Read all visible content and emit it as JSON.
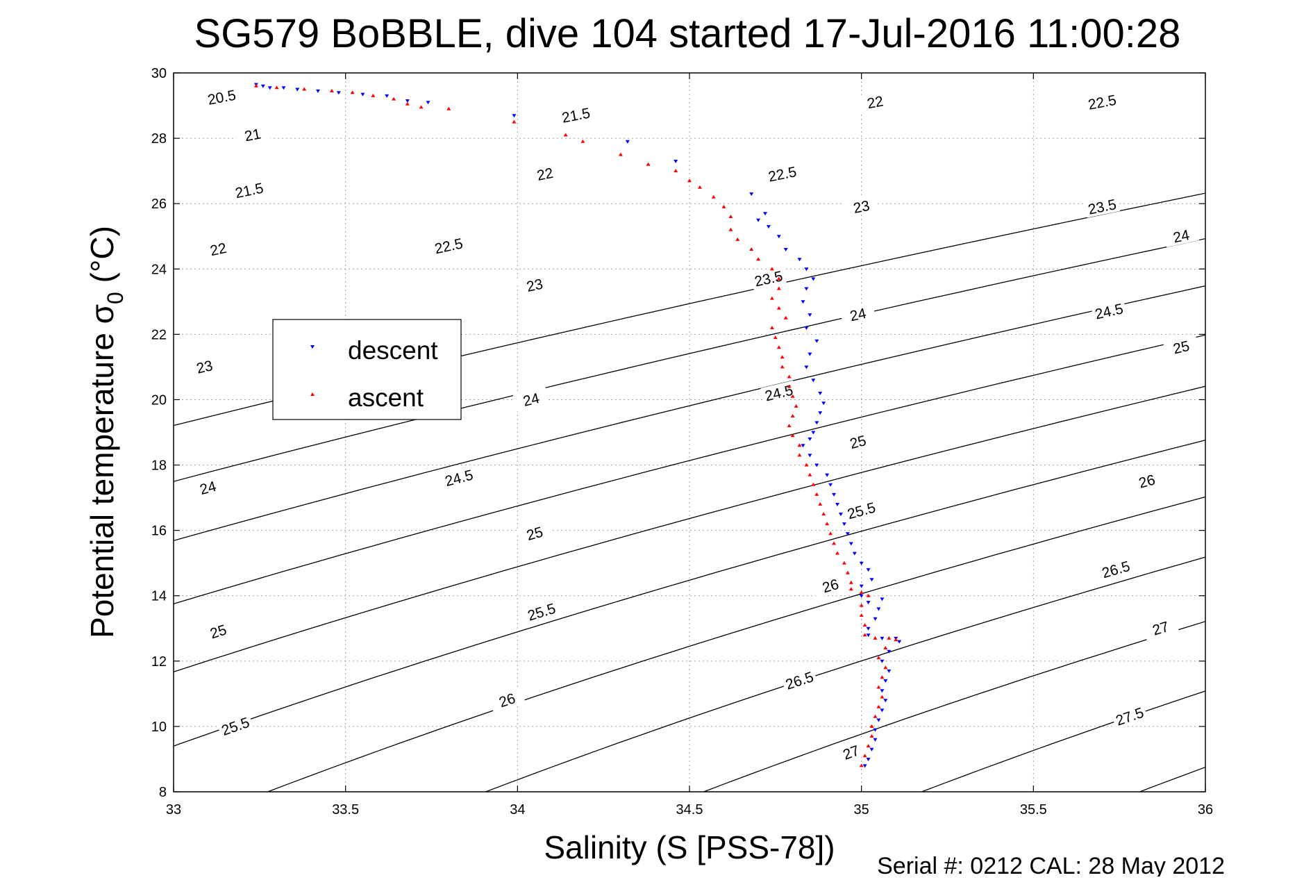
{
  "chart_data": {
    "type": "scatter",
    "title": "SG579 BoBBLE, dive 104 started 17-Jul-2016 11:00:28",
    "xlabel": "Salinity (S [PSS-78])",
    "ylabel": "Potential temperature",
    "ylabel_symbol": "σ",
    "ylabel_subscript": "0",
    "ylabel_unit": "(°C)",
    "footer": "Serial #: 0212  CAL: 28 May 2012",
    "xlim": [
      33,
      36
    ],
    "ylim": [
      8,
      30
    ],
    "xticks": [
      33,
      33.5,
      34,
      34.5,
      35,
      35.5,
      36
    ],
    "xtick_labels": [
      "33",
      "33.5",
      "34",
      "34.5",
      "35",
      "35.5",
      "36"
    ],
    "yticks": [
      8,
      10,
      12,
      14,
      16,
      18,
      20,
      22,
      24,
      26,
      28,
      30
    ],
    "ytick_labels": [
      "8",
      "10",
      "12",
      "14",
      "16",
      "18",
      "20",
      "22",
      "24",
      "26",
      "28",
      "30"
    ],
    "grid": true,
    "legend_position": "left",
    "colors": {
      "descent": "#0000ff",
      "ascent": "#ff0000",
      "contour": "#000000",
      "grid": "#a0a0a0"
    },
    "density_contours": [
      {
        "level": 20.5,
        "label": "20.5"
      },
      {
        "level": 21,
        "label": "21"
      },
      {
        "level": 21.5,
        "label": "21.5"
      },
      {
        "level": 22,
        "label": "22"
      },
      {
        "level": 22.5,
        "label": "22.5"
      },
      {
        "level": 23,
        "label": "23"
      },
      {
        "level": 23.5,
        "label": "23.5"
      },
      {
        "level": 24,
        "label": "24"
      },
      {
        "level": 24.5,
        "label": "24.5"
      },
      {
        "level": 25,
        "label": "25"
      },
      {
        "level": 25.5,
        "label": "25.5"
      },
      {
        "level": 26,
        "label": "26"
      },
      {
        "level": 26.5,
        "label": "26.5"
      },
      {
        "level": 27,
        "label": "27"
      },
      {
        "level": 27.5,
        "label": "27.5"
      }
    ],
    "contour_label_positions": [
      {
        "label": "20.5",
        "x": 33.14,
        "y": 29.25
      },
      {
        "label": "21",
        "x": 33.23,
        "y": 28.1
      },
      {
        "label": "21.5",
        "x": 33.22,
        "y": 26.4
      },
      {
        "label": "21.5",
        "x": 34.17,
        "y": 28.7
      },
      {
        "label": "22",
        "x": 33.13,
        "y": 24.6
      },
      {
        "label": "22",
        "x": 34.08,
        "y": 26.9
      },
      {
        "label": "22",
        "x": 35.04,
        "y": 29.1
      },
      {
        "label": "22.5",
        "x": 33.8,
        "y": 24.7
      },
      {
        "label": "22.5",
        "x": 34.77,
        "y": 26.9
      },
      {
        "label": "22.5",
        "x": 35.7,
        "y": 29.1
      },
      {
        "label": "23",
        "x": 33.09,
        "y": 21.0
      },
      {
        "label": "23",
        "x": 34.05,
        "y": 23.5
      },
      {
        "label": "23",
        "x": 35.0,
        "y": 25.9
      },
      {
        "label": "23.5",
        "x": 34.73,
        "y": 23.7
      },
      {
        "label": "23.5",
        "x": 35.7,
        "y": 25.9
      },
      {
        "label": "24",
        "x": 33.1,
        "y": 17.3
      },
      {
        "label": "24",
        "x": 34.04,
        "y": 20.0
      },
      {
        "label": "24",
        "x": 34.99,
        "y": 22.6
      },
      {
        "label": "24",
        "x": 35.93,
        "y": 25.0
      },
      {
        "label": "24.5",
        "x": 33.83,
        "y": 17.6
      },
      {
        "label": "24.5",
        "x": 34.76,
        "y": 20.2
      },
      {
        "label": "24.5",
        "x": 35.72,
        "y": 22.7
      },
      {
        "label": "25",
        "x": 33.13,
        "y": 12.9
      },
      {
        "label": "25",
        "x": 34.05,
        "y": 15.9
      },
      {
        "label": "25",
        "x": 34.99,
        "y": 18.7
      },
      {
        "label": "25",
        "x": 35.93,
        "y": 21.6
      },
      {
        "label": "25.5",
        "x": 33.18,
        "y": 10.0
      },
      {
        "label": "25.5",
        "x": 34.07,
        "y": 13.5
      },
      {
        "label": "25.5",
        "x": 35.0,
        "y": 16.6
      },
      {
        "label": "26",
        "x": 33.97,
        "y": 10.8
      },
      {
        "label": "26",
        "x": 34.91,
        "y": 14.3
      },
      {
        "label": "26",
        "x": 35.83,
        "y": 17.5
      },
      {
        "label": "26.5",
        "x": 34.82,
        "y": 11.4
      },
      {
        "label": "26.5",
        "x": 35.74,
        "y": 14.8
      },
      {
        "label": "27",
        "x": 34.97,
        "y": 9.2
      },
      {
        "label": "27",
        "x": 35.87,
        "y": 13.0
      },
      {
        "label": "27.5",
        "x": 35.78,
        "y": 10.3
      }
    ],
    "series": [
      {
        "name": "descent",
        "marker": "down-triangle",
        "points": [
          [
            33.24,
            29.65
          ],
          [
            33.26,
            29.6
          ],
          [
            33.28,
            29.55
          ],
          [
            33.32,
            29.55
          ],
          [
            33.36,
            29.5
          ],
          [
            33.42,
            29.45
          ],
          [
            33.48,
            29.4
          ],
          [
            33.55,
            29.35
          ],
          [
            33.62,
            29.3
          ],
          [
            33.68,
            29.15
          ],
          [
            33.74,
            29.1
          ],
          [
            33.99,
            28.7
          ],
          [
            34.32,
            27.9
          ],
          [
            34.46,
            27.3
          ],
          [
            34.68,
            26.3
          ],
          [
            34.72,
            25.7
          ],
          [
            34.7,
            25.5
          ],
          [
            34.73,
            25.3
          ],
          [
            34.76,
            25.0
          ],
          [
            34.78,
            24.6
          ],
          [
            34.82,
            24.3
          ],
          [
            34.84,
            24.0
          ],
          [
            34.86,
            23.7
          ],
          [
            34.84,
            23.4
          ],
          [
            34.83,
            23.0
          ],
          [
            34.85,
            22.6
          ],
          [
            34.84,
            22.2
          ],
          [
            34.87,
            21.8
          ],
          [
            34.85,
            21.4
          ],
          [
            34.84,
            21.0
          ],
          [
            34.86,
            20.6
          ],
          [
            34.88,
            20.2
          ],
          [
            34.89,
            19.9
          ],
          [
            34.88,
            19.6
          ],
          [
            34.87,
            19.3
          ],
          [
            34.86,
            19.0
          ],
          [
            34.85,
            18.8
          ],
          [
            34.83,
            18.6
          ],
          [
            34.85,
            18.3
          ],
          [
            34.87,
            18.0
          ],
          [
            34.9,
            17.7
          ],
          [
            34.91,
            17.4
          ],
          [
            34.92,
            17.1
          ],
          [
            34.93,
            16.8
          ],
          [
            34.94,
            16.5
          ],
          [
            34.95,
            16.2
          ],
          [
            34.96,
            15.9
          ],
          [
            34.97,
            15.6
          ],
          [
            34.98,
            15.3
          ],
          [
            35.0,
            15.0
          ],
          [
            35.02,
            14.8
          ],
          [
            35.03,
            14.5
          ],
          [
            35.0,
            14.3
          ],
          [
            35.0,
            14.0
          ],
          [
            35.02,
            13.8
          ],
          [
            35.06,
            13.9
          ],
          [
            35.05,
            13.6
          ],
          [
            35.04,
            13.3
          ],
          [
            35.02,
            13.0
          ],
          [
            35.02,
            12.8
          ],
          [
            35.06,
            12.7
          ],
          [
            35.1,
            12.7
          ],
          [
            35.11,
            12.6
          ],
          [
            35.08,
            12.3
          ],
          [
            35.06,
            12.0
          ],
          [
            35.08,
            11.7
          ],
          [
            35.07,
            11.4
          ],
          [
            35.06,
            11.1
          ],
          [
            35.07,
            10.8
          ],
          [
            35.06,
            10.5
          ],
          [
            35.05,
            10.2
          ],
          [
            35.04,
            9.9
          ],
          [
            35.04,
            9.6
          ],
          [
            35.03,
            9.3
          ],
          [
            35.02,
            9.0
          ],
          [
            35.01,
            8.8
          ]
        ]
      },
      {
        "name": "ascent",
        "marker": "up-triangle",
        "points": [
          [
            33.24,
            29.6
          ],
          [
            33.3,
            29.55
          ],
          [
            33.38,
            29.5
          ],
          [
            33.46,
            29.45
          ],
          [
            33.52,
            29.4
          ],
          [
            33.58,
            29.3
          ],
          [
            33.64,
            29.2
          ],
          [
            33.68,
            29.05
          ],
          [
            33.72,
            28.95
          ],
          [
            33.8,
            28.9
          ],
          [
            33.99,
            28.5
          ],
          [
            34.14,
            28.1
          ],
          [
            34.19,
            27.9
          ],
          [
            34.3,
            27.5
          ],
          [
            34.38,
            27.2
          ],
          [
            34.46,
            27.0
          ],
          [
            34.5,
            26.7
          ],
          [
            34.53,
            26.5
          ],
          [
            34.57,
            26.2
          ],
          [
            34.6,
            25.9
          ],
          [
            34.62,
            25.6
          ],
          [
            34.62,
            25.2
          ],
          [
            34.64,
            24.9
          ],
          [
            34.68,
            24.6
          ],
          [
            34.7,
            24.3
          ],
          [
            34.74,
            24.0
          ],
          [
            34.76,
            23.7
          ],
          [
            34.76,
            23.4
          ],
          [
            34.74,
            23.1
          ],
          [
            34.76,
            22.8
          ],
          [
            34.78,
            22.5
          ],
          [
            34.74,
            22.2
          ],
          [
            34.75,
            21.9
          ],
          [
            34.76,
            21.6
          ],
          [
            34.77,
            21.3
          ],
          [
            34.77,
            21.0
          ],
          [
            34.79,
            20.7
          ],
          [
            34.79,
            20.4
          ],
          [
            34.8,
            20.1
          ],
          [
            34.81,
            19.8
          ],
          [
            34.8,
            19.5
          ],
          [
            34.79,
            19.2
          ],
          [
            34.8,
            18.9
          ],
          [
            34.82,
            18.6
          ],
          [
            34.82,
            18.3
          ],
          [
            34.84,
            18.0
          ],
          [
            34.85,
            17.7
          ],
          [
            34.86,
            17.4
          ],
          [
            34.87,
            17.1
          ],
          [
            34.88,
            16.8
          ],
          [
            34.89,
            16.5
          ],
          [
            34.9,
            16.2
          ],
          [
            34.91,
            15.9
          ],
          [
            34.92,
            15.6
          ],
          [
            34.93,
            15.3
          ],
          [
            34.95,
            15.0
          ],
          [
            34.96,
            14.7
          ],
          [
            34.97,
            14.4
          ],
          [
            34.97,
            14.2
          ],
          [
            35.0,
            14.1
          ],
          [
            35.02,
            14.0
          ],
          [
            35.0,
            13.7
          ],
          [
            35.0,
            13.4
          ],
          [
            35.01,
            13.1
          ],
          [
            35.01,
            12.8
          ],
          [
            35.04,
            12.7
          ],
          [
            35.08,
            12.7
          ],
          [
            35.1,
            12.65
          ],
          [
            35.07,
            12.4
          ],
          [
            35.05,
            12.1
          ],
          [
            35.07,
            11.8
          ],
          [
            35.06,
            11.5
          ],
          [
            35.05,
            11.2
          ],
          [
            35.06,
            10.9
          ],
          [
            35.05,
            10.6
          ],
          [
            35.04,
            10.3
          ],
          [
            35.03,
            10.0
          ],
          [
            35.03,
            9.7
          ],
          [
            35.02,
            9.4
          ],
          [
            35.01,
            9.1
          ],
          [
            35.0,
            8.8
          ]
        ]
      }
    ]
  }
}
